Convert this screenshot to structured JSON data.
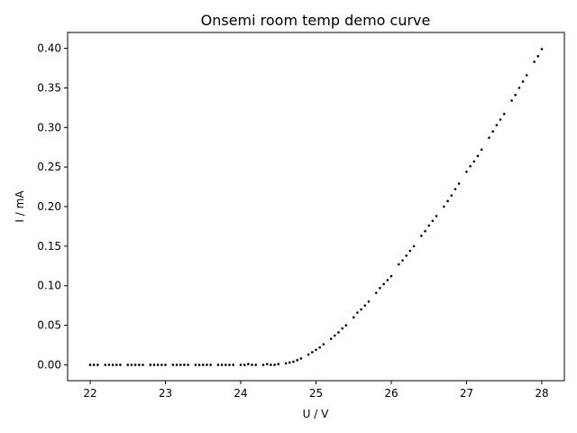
{
  "chart_data": {
    "type": "scatter",
    "title": "Onsemi room temp demo curve",
    "xlabel": "U / V",
    "ylabel": "I / mA",
    "xlim": [
      21.7,
      28.3
    ],
    "ylim": [
      -0.02,
      0.42
    ],
    "xticks": [
      22,
      23,
      24,
      25,
      26,
      27,
      28
    ],
    "yticks": [
      0.0,
      0.05,
      0.1,
      0.15,
      0.2,
      0.25,
      0.3,
      0.35,
      0.4
    ],
    "xtick_labels": [
      "22",
      "23",
      "24",
      "25",
      "26",
      "27",
      "28"
    ],
    "ytick_labels": [
      "0.00",
      "0.05",
      "0.10",
      "0.15",
      "0.20",
      "0.25",
      "0.30",
      "0.35",
      "0.40"
    ],
    "grid": false,
    "legend": null,
    "marker_color": "#000000",
    "series": [
      {
        "x": [
          22.0,
          22.05,
          22.1,
          22.2,
          22.25,
          22.3,
          22.35,
          22.4,
          22.5,
          22.55,
          22.6,
          22.65,
          22.7,
          22.8,
          22.85,
          22.9,
          22.95,
          23.0,
          23.1,
          23.15,
          23.2,
          23.25,
          23.3,
          23.4,
          23.45,
          23.5,
          23.55,
          23.6,
          23.7,
          23.75,
          23.8,
          23.85,
          23.9,
          24.0,
          24.05,
          24.1,
          24.15,
          24.2,
          24.3,
          24.35,
          24.4,
          24.45,
          24.5,
          24.6,
          24.65,
          24.7,
          24.75,
          24.8,
          24.9,
          24.95,
          25.0,
          25.05,
          25.1,
          25.2,
          25.25,
          25.3,
          25.35,
          25.4,
          25.5,
          25.55,
          25.6,
          25.65,
          25.7,
          25.8,
          25.85,
          25.9,
          25.95,
          26.0,
          26.1,
          26.15,
          26.2,
          26.25,
          26.3,
          26.4,
          26.45,
          26.5,
          26.55,
          26.6,
          26.7,
          26.75,
          26.8,
          26.85,
          26.9,
          27.0,
          27.05,
          27.1,
          27.15,
          27.2,
          27.3,
          27.35,
          27.4,
          27.45,
          27.5,
          27.6,
          27.65,
          27.7,
          27.75,
          27.8,
          27.9,
          27.95,
          28.0
        ],
        "y": [
          0.0,
          0.0,
          0.0,
          0.0,
          0.0,
          0.0,
          0.0,
          0.0,
          0.0,
          0.0,
          0.0,
          0.0,
          0.0,
          0.0,
          0.0,
          0.0,
          0.0,
          0.0,
          0.0,
          0.0,
          0.0,
          0.0,
          0.0,
          0.0,
          0.0,
          0.0,
          0.0,
          0.0,
          0.0,
          0.0,
          0.0,
          0.0,
          0.0,
          0.0,
          0.0,
          0.001,
          0.0,
          0.0,
          0.0,
          0.001,
          0.0,
          0.0,
          0.001,
          0.002,
          0.003,
          0.004,
          0.006,
          0.008,
          0.013,
          0.016,
          0.019,
          0.022,
          0.026,
          0.033,
          0.037,
          0.041,
          0.046,
          0.05,
          0.06,
          0.066,
          0.07,
          0.075,
          0.08,
          0.091,
          0.097,
          0.102,
          0.107,
          0.112,
          0.127,
          0.132,
          0.138,
          0.144,
          0.15,
          0.163,
          0.169,
          0.176,
          0.182,
          0.188,
          0.2,
          0.207,
          0.214,
          0.222,
          0.229,
          0.244,
          0.251,
          0.257,
          0.264,
          0.272,
          0.287,
          0.295,
          0.303,
          0.31,
          0.317,
          0.334,
          0.341,
          0.35,
          0.358,
          0.366,
          0.383,
          0.39,
          0.399
        ]
      }
    ]
  }
}
